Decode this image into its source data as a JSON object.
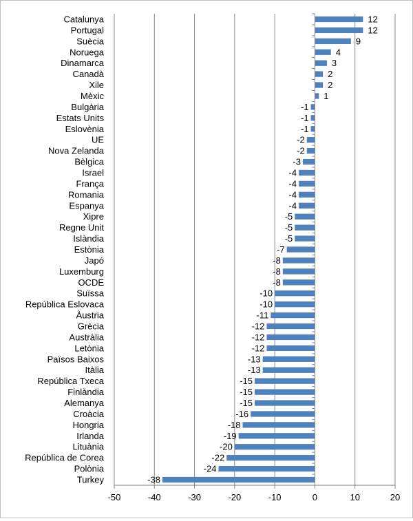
{
  "chart_data": {
    "type": "bar",
    "orientation": "horizontal",
    "title": "",
    "xlabel": "",
    "ylabel": "",
    "xlim": [
      -50,
      20
    ],
    "x_ticks": [
      -50,
      -40,
      -30,
      -20,
      -10,
      0,
      10,
      20
    ],
    "grid": "vertical",
    "bar_color": "#4F81BD",
    "categories": [
      "Catalunya",
      "Portugal",
      "Suècia",
      "Noruega",
      "Dinamarca",
      "Canadà",
      "Xile",
      "Mèxic",
      "Bulgària",
      "Estats Units",
      "Eslovènia",
      "UE",
      "Nova Zelanda",
      "Bèlgica",
      "Israel",
      "França",
      "Romania",
      "Espanya",
      "Xipre",
      "Regne Unit",
      "Islàndia",
      "Estònia",
      "Japó",
      "Luxemburg",
      "OCDE",
      "Suïssa",
      "República Eslovaca",
      "Àustria",
      "Grècia",
      "Austràlia",
      "Letònia",
      "Països Baixos",
      "Itàlia",
      "República Txeca",
      "Finlàndia",
      "Alemanya",
      "Croàcia",
      "Hongria",
      "Irlanda",
      "Lituània",
      "República de Corea",
      "Polònia",
      "Turkey"
    ],
    "values": [
      12,
      12,
      9,
      4,
      3,
      2,
      2,
      1,
      -1,
      -1,
      -1,
      -2,
      -2,
      -3,
      -4,
      -4,
      -4,
      -4,
      -5,
      -5,
      -5,
      -7,
      -8,
      -8,
      -8,
      -10,
      -10,
      -11,
      -12,
      -12,
      -12,
      -13,
      -13,
      -15,
      -15,
      -15,
      -16,
      -18,
      -19,
      -20,
      -22,
      -24,
      -38
    ]
  }
}
